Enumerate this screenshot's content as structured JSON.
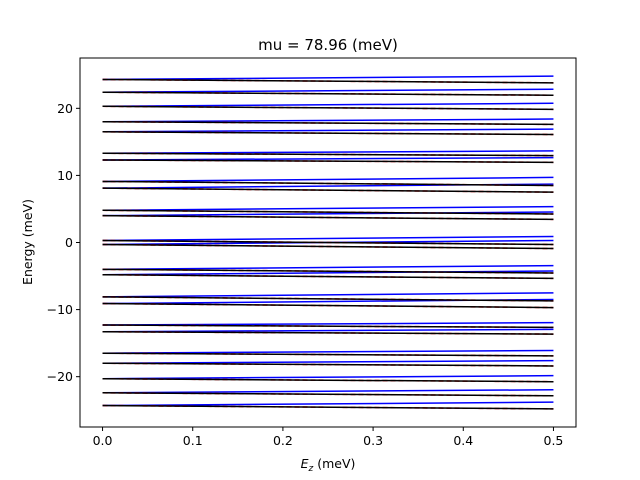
{
  "chart_data": {
    "type": "line",
    "title": "mu = 78.96 (meV)",
    "xlabel_main": "E",
    "xlabel_sub": "z",
    "xlabel_unit": " (meV)",
    "ylabel": "Energy (meV)",
    "xlim": [
      -0.025,
      0.525
    ],
    "ylim": [
      -27.5,
      27.5
    ],
    "xticks": [
      0.0,
      0.1,
      0.2,
      0.3,
      0.4,
      0.5
    ],
    "xtick_labels": [
      "0.0",
      "0.1",
      "0.2",
      "0.3",
      "0.4",
      "0.5"
    ],
    "yticks": [
      -20,
      -10,
      0,
      10,
      20
    ],
    "ytick_labels": [
      "−20",
      "−10",
      "0",
      "10",
      "20"
    ],
    "grid": false,
    "x": [
      0.0,
      0.5
    ],
    "levels": [
      -24.3,
      -22.4,
      -20.3,
      -18.0,
      -16.5,
      -13.3,
      -12.3,
      -9.1,
      -8.1,
      -4.8,
      -4.0,
      -0.3,
      0.3,
      4.0,
      4.8,
      8.1,
      9.1,
      12.3,
      13.3,
      16.5,
      18.0,
      20.3,
      22.4,
      24.3
    ],
    "splitting": [
      0.5,
      0.45,
      0.45,
      0.4,
      0.4,
      0.35,
      0.35,
      0.6,
      0.6,
      0.55,
      0.55,
      0.6,
      0.6,
      0.55,
      0.55,
      0.6,
      0.6,
      0.35,
      0.35,
      0.4,
      0.4,
      0.45,
      0.45,
      0.5
    ],
    "series": [
      {
        "style": "solid",
        "color": "#0000ff"
      },
      {
        "style": "dashed",
        "color": "#ff0000"
      },
      {
        "style": "solid",
        "color": "#000000"
      }
    ]
  }
}
